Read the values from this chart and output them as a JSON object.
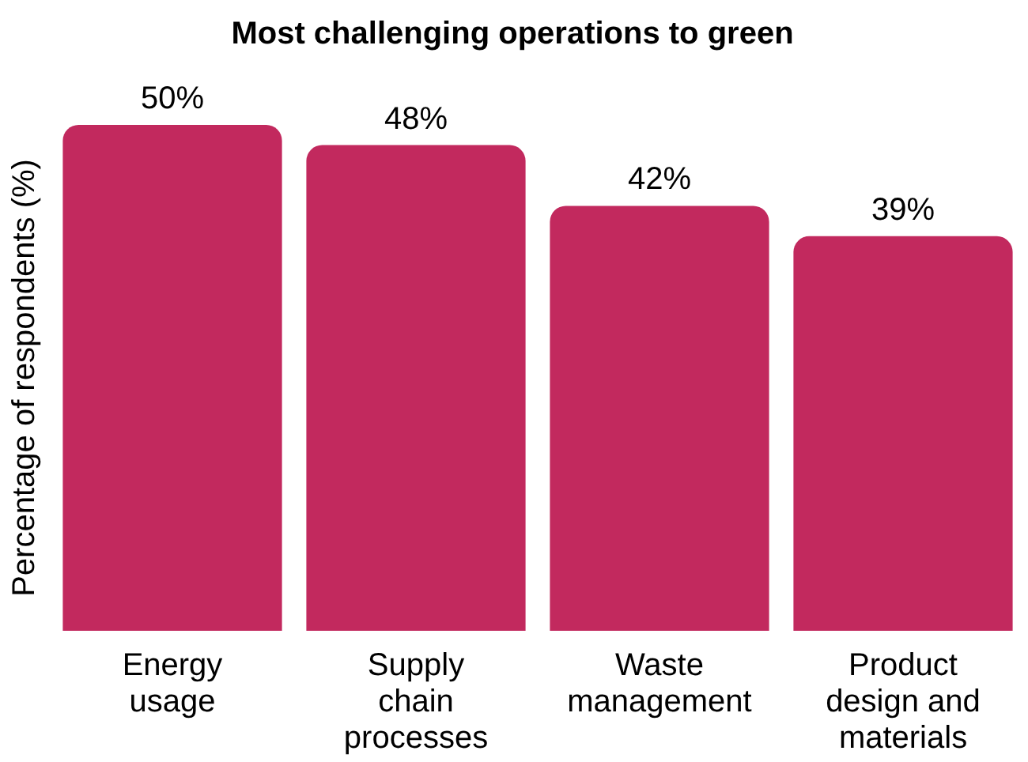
{
  "chart_data": {
    "type": "bar",
    "title": "Most challenging operations to green",
    "ylabel": "Percentage of respondents (%)",
    "categories": [
      "Energy usage",
      "Supply chain processes",
      "Waste management",
      "Product design and materials"
    ],
    "values": [
      50,
      48,
      42,
      39
    ],
    "value_labels": [
      "50%",
      "48%",
      "42%",
      "39%"
    ],
    "color": "#c2295e",
    "legend": false,
    "grid": false
  }
}
